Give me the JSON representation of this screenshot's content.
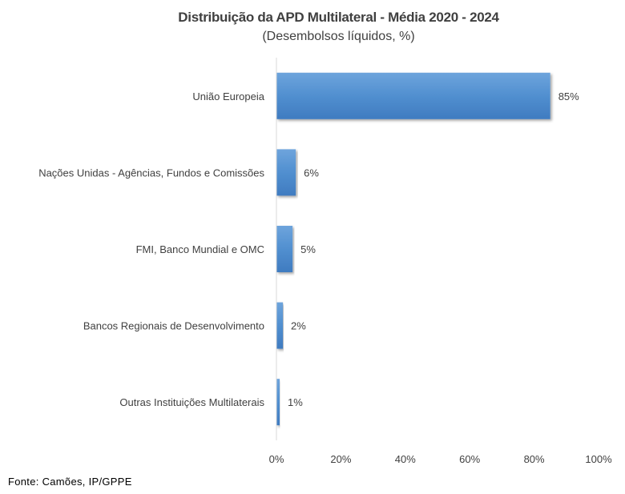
{
  "chart_data": {
    "type": "bar",
    "orientation": "horizontal",
    "title": "Distribuição da APD Multilateral - Média 2020 - 2024",
    "subtitle": "(Desembolsos líquidos, %)",
    "categories": [
      "União Europeia",
      "Nações Unidas - Agências, Fundos e Comissões",
      "FMI, Banco Mundial e OMC",
      "Bancos Regionais de Desenvolvimento",
      "Outras Instituições Multilaterais"
    ],
    "values": [
      85,
      6,
      5,
      2,
      1
    ],
    "data_labels": [
      "85%",
      "6%",
      "5%",
      "2%",
      "1%"
    ],
    "xlim": [
      0,
      100
    ],
    "x_ticks": [
      "0%",
      "20%",
      "40%",
      "60%",
      "80%",
      "100%"
    ],
    "x_tick_values": [
      0,
      20,
      40,
      60,
      80,
      100
    ],
    "grid": false,
    "bar_color": "#4a86c8",
    "bar_color_light": "#6ba0d8"
  },
  "source": "Fonte: Camões, IP/GPPE"
}
